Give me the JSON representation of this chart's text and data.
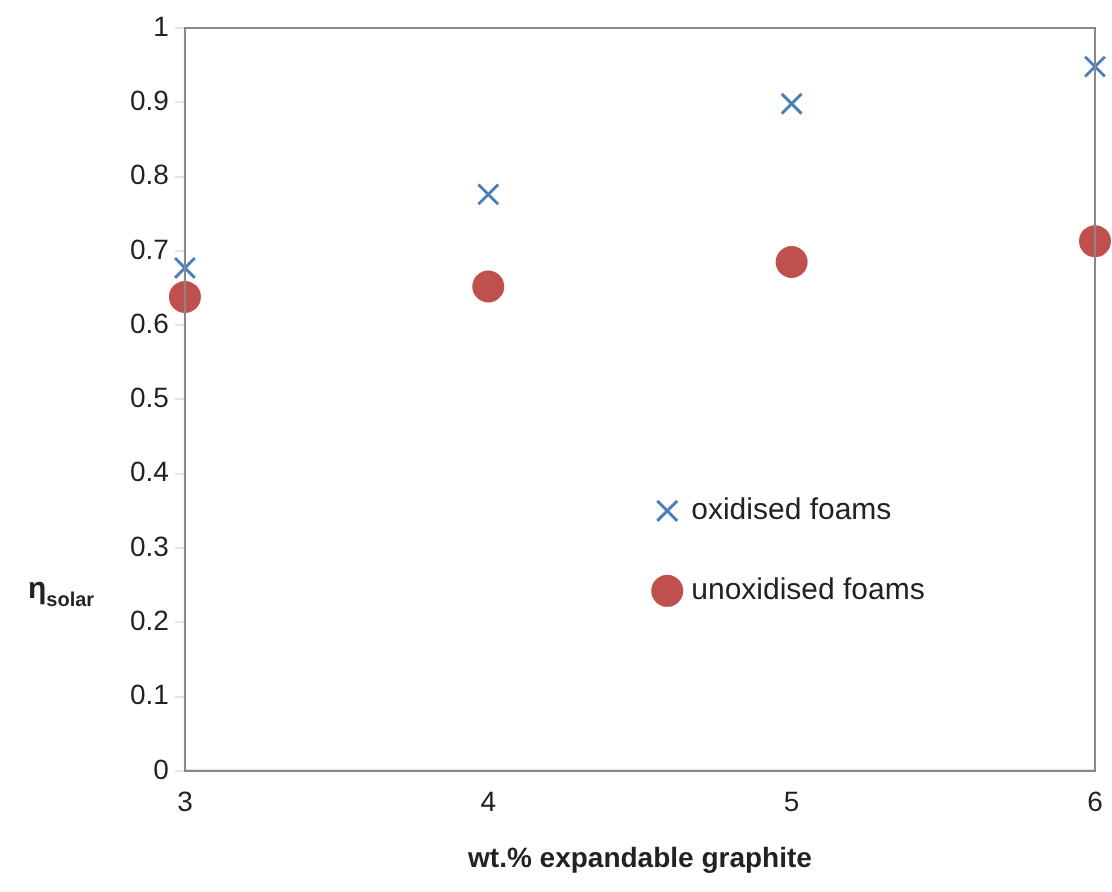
{
  "chart_data": {
    "type": "scatter",
    "xlabel": "wt.% expandable graphite",
    "ylabel": "η$_{solar}$",
    "x": [
      3,
      4,
      5,
      6
    ],
    "series": [
      {
        "name": "oxidised foams",
        "color": "#4a7ebb",
        "marker": "cross",
        "values": [
          0.677,
          0.776,
          0.898,
          0.948
        ]
      },
      {
        "name": "unoxidised foams",
        "color": "#c0504d",
        "marker": "circle",
        "values": [
          0.638,
          0.652,
          0.685,
          0.713
        ]
      }
    ],
    "xlim": [
      3,
      6
    ],
    "xticks": [
      3,
      4,
      5,
      6
    ],
    "ylim": [
      0,
      1
    ],
    "yticks": [
      0,
      0.1,
      0.2,
      0.3,
      0.4,
      0.5,
      0.6,
      0.7,
      0.8,
      0.9,
      1
    ],
    "grid": false,
    "legend": "bottom right"
  }
}
